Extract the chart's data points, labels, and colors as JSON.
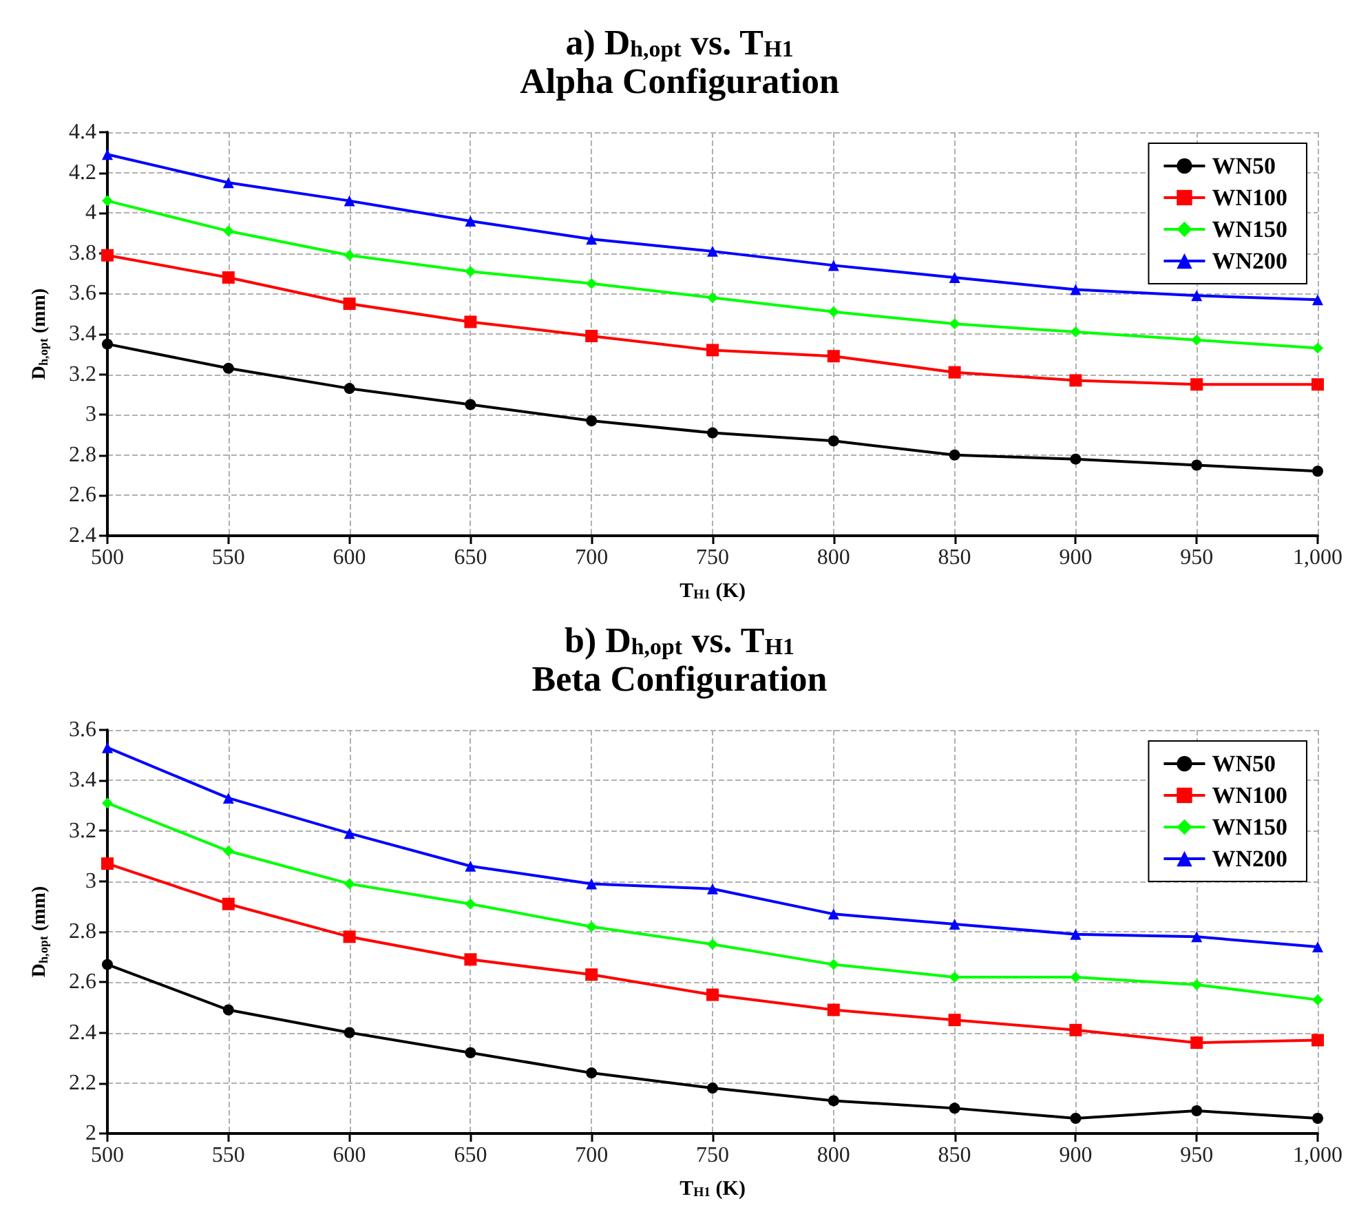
{
  "chart_data": [
    {
      "type": "line",
      "title": "a) D$_{h,opt}$ vs. T$_{H1}$",
      "subtitle": "Alpha Configuration",
      "xlabel": "T$_{H1}$ (K)",
      "ylabel": "D$_{h,opt}$ (mm)",
      "x": [
        500,
        550,
        600,
        650,
        700,
        750,
        800,
        850,
        900,
        950,
        1000
      ],
      "xlim": [
        500,
        1000
      ],
      "xticks": [
        500,
        550,
        600,
        650,
        700,
        750,
        800,
        850,
        900,
        950,
        {
          "value": 1000,
          "label": "1,000"
        }
      ],
      "ylim": [
        2.4,
        4.4
      ],
      "yticks": [
        2.4,
        2.6,
        2.8,
        3,
        3.2,
        3.4,
        3.6,
        3.8,
        4,
        4.2,
        4.4
      ],
      "grid": true,
      "legend": "top right",
      "line_style": "solid",
      "series": [
        {
          "name": "WN50",
          "color": "#000000",
          "marker": "circle",
          "values": [
            3.35,
            3.23,
            3.13,
            3.05,
            2.97,
            2.91,
            2.87,
            2.8,
            2.78,
            2.75,
            2.72
          ]
        },
        {
          "name": "WN100",
          "color": "#ff0000",
          "marker": "square",
          "values": [
            3.79,
            3.68,
            3.55,
            3.46,
            3.39,
            3.32,
            3.29,
            3.21,
            3.17,
            3.15,
            3.15
          ]
        },
        {
          "name": "WN150",
          "color": "#00ff00",
          "marker": "diamond",
          "values": [
            4.06,
            3.91,
            3.79,
            3.71,
            3.65,
            3.58,
            3.51,
            3.45,
            3.41,
            3.37,
            3.33
          ]
        },
        {
          "name": "WN200",
          "color": "#0000ff",
          "marker": "triangle",
          "values": [
            4.29,
            4.15,
            4.06,
            3.96,
            3.87,
            3.81,
            3.74,
            3.68,
            3.62,
            3.59,
            3.57
          ]
        }
      ]
    },
    {
      "type": "line",
      "title": "b) D$_{h,opt}$ vs. T$_{H1}$",
      "subtitle": "Beta Configuration",
      "xlabel": "T$_{H1}$ (K)",
      "ylabel": "D$_{h,opt}$ (mm)",
      "x": [
        500,
        550,
        600,
        650,
        700,
        750,
        800,
        850,
        900,
        950,
        1000
      ],
      "xlim": [
        500,
        1000
      ],
      "xticks": [
        500,
        550,
        600,
        650,
        700,
        750,
        800,
        850,
        900,
        950,
        {
          "value": 1000,
          "label": "1,000"
        }
      ],
      "ylim": [
        2,
        3.6
      ],
      "yticks": [
        2,
        2.2,
        2.4,
        2.6,
        2.8,
        3,
        3.2,
        3.4,
        3.6
      ],
      "grid": true,
      "legend": "top right",
      "line_style": "solid",
      "series": [
        {
          "name": "WN50",
          "color": "#000000",
          "marker": "circle",
          "values": [
            2.67,
            2.49,
            2.4,
            2.32,
            2.24,
            2.18,
            2.13,
            2.1,
            2.06,
            2.09,
            2.06
          ]
        },
        {
          "name": "WN100",
          "color": "#ff0000",
          "marker": "square",
          "values": [
            3.07,
            2.91,
            2.78,
            2.69,
            2.63,
            2.55,
            2.49,
            2.45,
            2.41,
            2.36,
            2.37
          ]
        },
        {
          "name": "WN150",
          "color": "#00ff00",
          "marker": "diamond",
          "values": [
            3.31,
            3.12,
            2.99,
            2.91,
            2.82,
            2.75,
            2.67,
            2.62,
            2.62,
            2.59,
            2.53
          ]
        },
        {
          "name": "WN200",
          "color": "#0000ff",
          "marker": "triangle",
          "values": [
            3.53,
            3.33,
            3.19,
            3.06,
            2.99,
            2.97,
            2.87,
            2.83,
            2.79,
            2.78,
            2.74
          ]
        }
      ]
    }
  ]
}
